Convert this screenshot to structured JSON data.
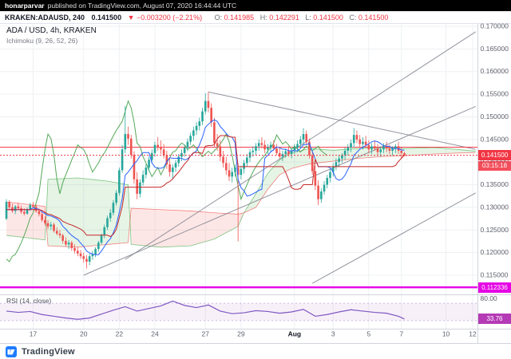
{
  "publish_bar": {
    "author": "honarparvar",
    "text": "published on TradingView.com, August 07, 2020 16:44:44 UTC"
  },
  "symbol_bar": {
    "symbol": "KRAKEN:ADAUSD, 240",
    "price": "0.141500",
    "change": "▼ −0.003200 (−2.21%)",
    "o_label": "O:",
    "o": "0.141985",
    "h_label": "H:",
    "h": "0.142291",
    "l_label": "L:",
    "l": "0.141500",
    "c_label": "C:",
    "c": "0.141500"
  },
  "legend": {
    "title": "ADA / USD, 4h, KRAKEN",
    "indicator": "Ichimoku (9, 26, 52, 26)"
  },
  "price_scale": {
    "last_price": "0.141500",
    "countdown": "03:15:18",
    "level_label": "0.112336"
  },
  "rsi_pane": {
    "label": "RSI (14, close)",
    "value_label": "33.76"
  },
  "footer": {
    "brand": "TradingView"
  },
  "colors": {
    "up": "#26a69a",
    "down": "#ef5350",
    "badge_down": "#f23645",
    "tenkan": "#2962ff",
    "kijun": "#c62828",
    "lagging": "#43a047",
    "span_a": "#4caf50",
    "span_b": "#ef5350",
    "cloud_up": "rgba(76,175,80,0.14)",
    "cloud_down": "rgba(239,83,80,0.14)",
    "trendline": "#80838e",
    "grid": "#eef0f3",
    "border": "#d1d4dc",
    "axis_text": "#5d606b",
    "rsi_line": "#7e57c2",
    "rsi_band": "rgba(186,104,200,0.10)",
    "magenta": "#e500e5"
  },
  "chart_data": {
    "type": "candlestick",
    "symbol": "ADA/USD",
    "interval": "4h",
    "exchange": "KRAKEN",
    "price_axis": {
      "min": 0.111,
      "max": 0.1709,
      "tick_step": 0.005,
      "tick_labels": [
        "0.170000",
        "0.165000",
        "0.160000",
        "0.155000",
        "0.150000",
        "0.145000",
        "0.140000",
        "0.135000",
        "0.130000",
        "0.125000",
        "0.120000",
        "0.115000"
      ]
    },
    "time_axis": [
      {
        "label": "17",
        "i": 9
      },
      {
        "label": "20",
        "i": 26
      },
      {
        "label": "22",
        "i": 38
      },
      {
        "label": "24",
        "i": 50
      },
      {
        "label": "27",
        "i": 67
      },
      {
        "label": "29",
        "i": 79
      },
      {
        "label": "Aug",
        "i": 97,
        "em": true
      },
      {
        "label": "3",
        "i": 110
      },
      {
        "label": "5",
        "i": 122
      },
      {
        "label": "7",
        "i": 133
      },
      {
        "label": "10",
        "i": 148
      },
      {
        "label": "12",
        "i": 157
      }
    ],
    "last_price": 0.1415,
    "levels": [
      {
        "price": 0.1433,
        "color": "#f23645",
        "width": 1
      },
      {
        "price": 0.112336,
        "color": "#e500e5",
        "width": 2.5
      }
    ],
    "trendlines": [
      {
        "i1": 26,
        "p1": 0.115,
        "i2": 158,
        "p2": 0.1523
      },
      {
        "i1": 40,
        "p1": 0.1185,
        "i2": 158,
        "p2": 0.1688
      },
      {
        "i1": 68,
        "p1": 0.1555,
        "i2": 158,
        "p2": 0.1428
      },
      {
        "i1": 103,
        "p1": 0.1132,
        "i2": 158,
        "p2": 0.1332
      }
    ],
    "ichimoku": {
      "params": [
        9,
        26,
        52,
        26
      ],
      "cloud": [
        {
          "i": 0,
          "a": 0.1238,
          "b": 0.1312
        },
        {
          "i": 8,
          "a": 0.1232,
          "b": 0.1306
        },
        {
          "i": 13,
          "a": 0.1228,
          "b": 0.1302
        },
        {
          "i": 14,
          "a": 0.1362,
          "b": 0.1215
        },
        {
          "i": 24,
          "a": 0.1365,
          "b": 0.1212
        },
        {
          "i": 34,
          "a": 0.1358,
          "b": 0.1218
        },
        {
          "i": 41,
          "a": 0.135,
          "b": 0.1222
        },
        {
          "i": 42,
          "a": 0.1218,
          "b": 0.1298
        },
        {
          "i": 52,
          "a": 0.1212,
          "b": 0.1295
        },
        {
          "i": 62,
          "a": 0.1215,
          "b": 0.1292
        },
        {
          "i": 70,
          "a": 0.123,
          "b": 0.1288
        },
        {
          "i": 78,
          "a": 0.1258,
          "b": 0.1285
        },
        {
          "i": 80,
          "a": 0.1288,
          "b": 0.1288
        },
        {
          "i": 84,
          "a": 0.133,
          "b": 0.13
        },
        {
          "i": 88,
          "a": 0.1375,
          "b": 0.134
        },
        {
          "i": 92,
          "a": 0.1405,
          "b": 0.1372
        },
        {
          "i": 96,
          "a": 0.142,
          "b": 0.1386
        },
        {
          "i": 102,
          "a": 0.143,
          "b": 0.1396
        },
        {
          "i": 110,
          "a": 0.1426,
          "b": 0.1402
        },
        {
          "i": 118,
          "a": 0.143,
          "b": 0.1408
        },
        {
          "i": 126,
          "a": 0.1432,
          "b": 0.1412
        },
        {
          "i": 134,
          "a": 0.143,
          "b": 0.1414
        },
        {
          "i": 144,
          "a": 0.1432,
          "b": 0.1418
        },
        {
          "i": 152,
          "a": 0.1428,
          "b": 0.142
        },
        {
          "i": 158,
          "a": 0.1424,
          "b": 0.1421
        }
      ]
    },
    "candles": [
      [
        0.1275,
        0.1318,
        0.1272,
        0.1312
      ],
      [
        0.1312,
        0.1316,
        0.1295,
        0.13
      ],
      [
        0.13,
        0.1308,
        0.1288,
        0.1292
      ],
      [
        0.1292,
        0.1305,
        0.1285,
        0.1302
      ],
      [
        0.1302,
        0.131,
        0.1296,
        0.1298
      ],
      [
        0.1298,
        0.1304,
        0.1286,
        0.129
      ],
      [
        0.129,
        0.1298,
        0.1282,
        0.1286
      ],
      [
        0.1286,
        0.13,
        0.1284,
        0.1296
      ],
      [
        0.1296,
        0.131,
        0.1292,
        0.1305
      ],
      [
        0.1305,
        0.1312,
        0.1298,
        0.1301
      ],
      [
        0.1301,
        0.1306,
        0.1288,
        0.1292
      ],
      [
        0.1292,
        0.1296,
        0.128,
        0.1285
      ],
      [
        0.1285,
        0.129,
        0.1268,
        0.1272
      ],
      [
        0.1272,
        0.128,
        0.126,
        0.1265
      ],
      [
        0.1265,
        0.1272,
        0.1252,
        0.1258
      ],
      [
        0.1258,
        0.1268,
        0.125,
        0.1262
      ],
      [
        0.1262,
        0.1266,
        0.1244,
        0.1248
      ],
      [
        0.1248,
        0.1256,
        0.1238,
        0.1242
      ],
      [
        0.1242,
        0.125,
        0.1232,
        0.1238
      ],
      [
        0.1238,
        0.1242,
        0.122,
        0.1226
      ],
      [
        0.1226,
        0.1234,
        0.1214,
        0.1218
      ],
      [
        0.1218,
        0.1228,
        0.1208,
        0.1222
      ],
      [
        0.1222,
        0.1226,
        0.1204,
        0.121
      ],
      [
        0.121,
        0.1218,
        0.1198,
        0.1204
      ],
      [
        0.1204,
        0.1212,
        0.1192,
        0.1198
      ],
      [
        0.1198,
        0.1206,
        0.1186,
        0.1192
      ],
      [
        0.1192,
        0.12,
        0.1178,
        0.1186
      ],
      [
        0.1186,
        0.1194,
        0.1165,
        0.118
      ],
      [
        0.118,
        0.1198,
        0.1172,
        0.1192
      ],
      [
        0.1192,
        0.1204,
        0.1184,
        0.1196
      ],
      [
        0.1196,
        0.1212,
        0.119,
        0.1208
      ],
      [
        0.1208,
        0.1226,
        0.1202,
        0.1222
      ],
      [
        0.1222,
        0.1242,
        0.1218,
        0.1238
      ],
      [
        0.1238,
        0.1262,
        0.1232,
        0.1256
      ],
      [
        0.1256,
        0.1282,
        0.125,
        0.1276
      ],
      [
        0.1276,
        0.1296,
        0.1268,
        0.1288
      ],
      [
        0.1288,
        0.1316,
        0.1282,
        0.131
      ],
      [
        0.131,
        0.1338,
        0.1304,
        0.1332
      ],
      [
        0.1332,
        0.1388,
        0.1326,
        0.1382
      ],
      [
        0.1382,
        0.1438,
        0.1376,
        0.1428
      ],
      [
        0.1428,
        0.1524,
        0.142,
        0.1462
      ],
      [
        0.1462,
        0.1478,
        0.1438,
        0.1452
      ],
      [
        0.1452,
        0.146,
        0.1408,
        0.1416
      ],
      [
        0.1416,
        0.1424,
        0.1352,
        0.1362
      ],
      [
        0.1362,
        0.1378,
        0.1318,
        0.133
      ],
      [
        0.133,
        0.1362,
        0.1322,
        0.1355
      ],
      [
        0.1355,
        0.1382,
        0.1348,
        0.1372
      ],
      [
        0.1372,
        0.1395,
        0.1364,
        0.1388
      ],
      [
        0.1388,
        0.1412,
        0.138,
        0.1405
      ],
      [
        0.1405,
        0.1428,
        0.1398,
        0.142
      ],
      [
        0.142,
        0.1445,
        0.1412,
        0.1438
      ],
      [
        0.1438,
        0.1455,
        0.1425,
        0.1432
      ],
      [
        0.1432,
        0.1448,
        0.1418,
        0.1428
      ],
      [
        0.1428,
        0.144,
        0.1408,
        0.1415
      ],
      [
        0.1415,
        0.1425,
        0.1385,
        0.1395
      ],
      [
        0.1395,
        0.1408,
        0.1368,
        0.1378
      ],
      [
        0.1378,
        0.1395,
        0.1362,
        0.1388
      ],
      [
        0.1388,
        0.1405,
        0.1378,
        0.1398
      ],
      [
        0.1398,
        0.1418,
        0.139,
        0.1412
      ],
      [
        0.1412,
        0.1428,
        0.1402,
        0.142
      ],
      [
        0.142,
        0.1438,
        0.1412,
        0.1432
      ],
      [
        0.1432,
        0.1452,
        0.1424,
        0.1445
      ],
      [
        0.1445,
        0.1465,
        0.1438,
        0.1458
      ],
      [
        0.1458,
        0.1478,
        0.1448,
        0.147
      ],
      [
        0.147,
        0.1488,
        0.146,
        0.148
      ],
      [
        0.148,
        0.1498,
        0.147,
        0.149
      ],
      [
        0.149,
        0.152,
        0.1482,
        0.1512
      ],
      [
        0.1512,
        0.1552,
        0.1505,
        0.1535
      ],
      [
        0.1535,
        0.1555,
        0.151,
        0.152
      ],
      [
        0.152,
        0.153,
        0.1478,
        0.1488
      ],
      [
        0.1488,
        0.1498,
        0.1432,
        0.1442
      ],
      [
        0.1442,
        0.1462,
        0.1425,
        0.1435
      ],
      [
        0.1435,
        0.1448,
        0.1402,
        0.1412
      ],
      [
        0.1412,
        0.1425,
        0.1388,
        0.1398
      ],
      [
        0.1398,
        0.1412,
        0.1372,
        0.1382
      ],
      [
        0.1382,
        0.1398,
        0.1358,
        0.1368
      ],
      [
        0.1368,
        0.1388,
        0.1355,
        0.1378
      ],
      [
        0.1378,
        0.1395,
        0.1368,
        0.1388
      ],
      [
        0.1388,
        0.1398,
        0.1225,
        0.1372
      ],
      [
        0.1372,
        0.1392,
        0.1362,
        0.1385
      ],
      [
        0.1385,
        0.1405,
        0.1375,
        0.1398
      ],
      [
        0.1398,
        0.1418,
        0.139,
        0.141
      ],
      [
        0.141,
        0.1428,
        0.14,
        0.1422
      ],
      [
        0.1422,
        0.1435,
        0.1412,
        0.1425
      ],
      [
        0.1425,
        0.1442,
        0.1415,
        0.1435
      ],
      [
        0.1435,
        0.145,
        0.1425,
        0.1442
      ],
      [
        0.1442,
        0.1455,
        0.143,
        0.1438
      ],
      [
        0.1438,
        0.1448,
        0.142,
        0.1428
      ],
      [
        0.1428,
        0.144,
        0.1418,
        0.1432
      ],
      [
        0.1432,
        0.1445,
        0.1422,
        0.1438
      ],
      [
        0.1438,
        0.1448,
        0.1425,
        0.143
      ],
      [
        0.143,
        0.144,
        0.1415,
        0.142
      ],
      [
        0.142,
        0.1432,
        0.1408,
        0.1412
      ],
      [
        0.1412,
        0.1425,
        0.1402,
        0.1418
      ],
      [
        0.1418,
        0.143,
        0.141,
        0.1424
      ],
      [
        0.1424,
        0.1435,
        0.1412,
        0.1418
      ],
      [
        0.1418,
        0.143,
        0.1408,
        0.1425
      ],
      [
        0.1425,
        0.144,
        0.1418,
        0.1432
      ],
      [
        0.1432,
        0.1448,
        0.1422,
        0.144
      ],
      [
        0.144,
        0.1458,
        0.1432,
        0.145
      ],
      [
        0.145,
        0.1475,
        0.144,
        0.1462
      ],
      [
        0.1462,
        0.147,
        0.1438,
        0.1445
      ],
      [
        0.1445,
        0.1452,
        0.1408,
        0.1415
      ],
      [
        0.1415,
        0.1422,
        0.1372,
        0.138
      ],
      [
        0.138,
        0.1392,
        0.1338,
        0.1348
      ],
      [
        0.1348,
        0.136,
        0.1305,
        0.1318
      ],
      [
        0.1318,
        0.1342,
        0.131,
        0.1335
      ],
      [
        0.1335,
        0.1358,
        0.1328,
        0.135
      ],
      [
        0.135,
        0.1372,
        0.1342,
        0.1365
      ],
      [
        0.1365,
        0.1385,
        0.1355,
        0.1378
      ],
      [
        0.1378,
        0.1398,
        0.1368,
        0.139
      ],
      [
        0.139,
        0.1408,
        0.1382,
        0.14
      ],
      [
        0.14,
        0.1415,
        0.139,
        0.1408
      ],
      [
        0.1408,
        0.142,
        0.1398,
        0.1415
      ],
      [
        0.1415,
        0.1432,
        0.1405,
        0.1425
      ],
      [
        0.1425,
        0.144,
        0.1415,
        0.1432
      ],
      [
        0.1432,
        0.145,
        0.1422,
        0.1442
      ],
      [
        0.1442,
        0.1475,
        0.1432,
        0.146
      ],
      [
        0.146,
        0.147,
        0.1442,
        0.145
      ],
      [
        0.145,
        0.146,
        0.1432,
        0.144
      ],
      [
        0.144,
        0.1455,
        0.1428,
        0.1445
      ],
      [
        0.1445,
        0.1458,
        0.1432,
        0.1438
      ],
      [
        0.1438,
        0.1448,
        0.142,
        0.1428
      ],
      [
        0.1428,
        0.1442,
        0.1418,
        0.1435
      ],
      [
        0.1435,
        0.1448,
        0.1425,
        0.143
      ],
      [
        0.143,
        0.144,
        0.1415,
        0.1422
      ],
      [
        0.1422,
        0.1435,
        0.1412,
        0.1428
      ],
      [
        0.1428,
        0.1442,
        0.142,
        0.1435
      ],
      [
        0.1435,
        0.1445,
        0.1422,
        0.143
      ],
      [
        0.143,
        0.1438,
        0.1418,
        0.1425
      ],
      [
        0.1425,
        0.1435,
        0.1415,
        0.143
      ],
      [
        0.143,
        0.144,
        0.142,
        0.1435
      ],
      [
        0.1435,
        0.1445,
        0.1418,
        0.1425
      ],
      [
        0.1425,
        0.1432,
        0.1408,
        0.142
      ],
      [
        0.141985,
        0.142291,
        0.1415,
        0.1415
      ]
    ],
    "rsi": {
      "upper": 70,
      "lower": 30,
      "last": 33.76,
      "scale_labels": [
        {
          "v": 80,
          "label": "80.00"
        }
      ],
      "points": [
        [
          0,
          52
        ],
        [
          4,
          49
        ],
        [
          8,
          51
        ],
        [
          12,
          44
        ],
        [
          16,
          40
        ],
        [
          20,
          36
        ],
        [
          24,
          33
        ],
        [
          28,
          36
        ],
        [
          32,
          45
        ],
        [
          36,
          54
        ],
        [
          40,
          62
        ],
        [
          44,
          52
        ],
        [
          48,
          58
        ],
        [
          52,
          64
        ],
        [
          56,
          75
        ],
        [
          60,
          65
        ],
        [
          64,
          60
        ],
        [
          68,
          66
        ],
        [
          72,
          52
        ],
        [
          76,
          46
        ],
        [
          80,
          48
        ],
        [
          84,
          53
        ],
        [
          88,
          51
        ],
        [
          92,
          47
        ],
        [
          96,
          50
        ],
        [
          100,
          56
        ],
        [
          104,
          40
        ],
        [
          108,
          44
        ],
        [
          112,
          50
        ],
        [
          116,
          55
        ],
        [
          120,
          52
        ],
        [
          124,
          49
        ],
        [
          128,
          47
        ],
        [
          132,
          40
        ],
        [
          134,
          33.76
        ]
      ]
    }
  }
}
